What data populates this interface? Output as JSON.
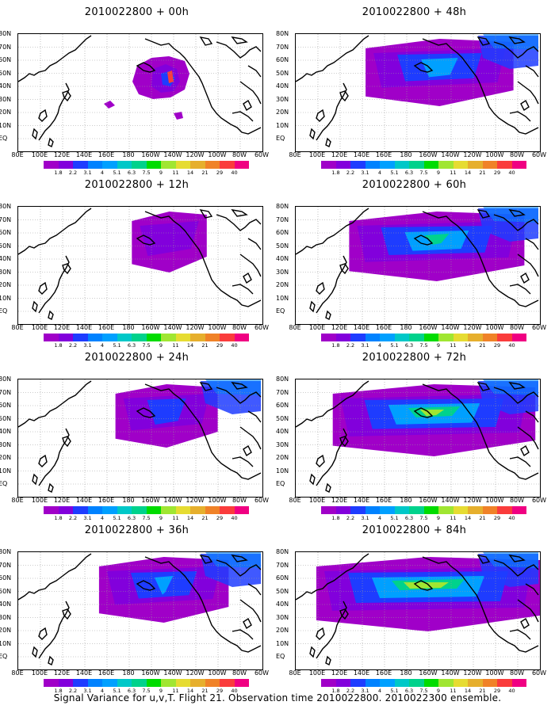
{
  "panels": [
    {
      "title": "2010022800 + 00h",
      "intensity": 0.0
    },
    {
      "title": "2010022800 + 48h",
      "intensity": 0.55
    },
    {
      "title": "2010022800 + 12h",
      "intensity": 0.15
    },
    {
      "title": "2010022800 + 60h",
      "intensity": 0.7
    },
    {
      "title": "2010022800 + 24h",
      "intensity": 0.3
    },
    {
      "title": "2010022800 + 72h",
      "intensity": 0.85
    },
    {
      "title": "2010022800 + 36h",
      "intensity": 0.45
    },
    {
      "title": "2010022800 + 84h",
      "intensity": 1.0
    }
  ],
  "lat_labels": [
    "80N",
    "70N",
    "60N",
    "50N",
    "40N",
    "30N",
    "20N",
    "10N",
    "EQ"
  ],
  "lon_labels": [
    "80E",
    "100E",
    "120E",
    "140E",
    "160E",
    "180",
    "160W",
    "140W",
    "120W",
    "100W",
    "80W",
    "60W"
  ],
  "colorbar": {
    "colors": [
      "#a000c8",
      "#8200dc",
      "#1e3cff",
      "#0082ff",
      "#00a0ff",
      "#00c8c8",
      "#00d28c",
      "#00dc00",
      "#a0e632",
      "#e6dc32",
      "#e6af2d",
      "#f08228",
      "#fa3c3c",
      "#f00082"
    ],
    "labels": [
      "1.8",
      "2.2",
      "3.1",
      "4",
      "5.1",
      "6.3",
      "7.5",
      "9",
      "11",
      "14",
      "21",
      "29",
      "40"
    ]
  },
  "caption": "Signal Variance for u,v,T. Flight 21. Observation time 2010022800. 2010022300 ensemble."
}
